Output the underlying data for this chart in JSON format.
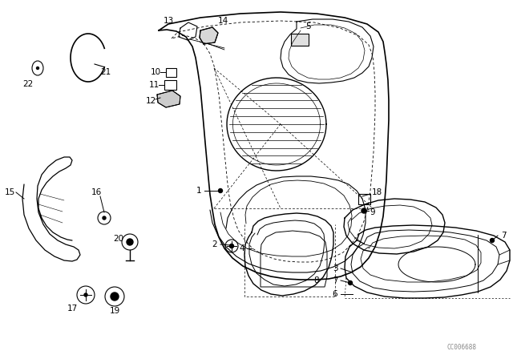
{
  "bg_color": "#ffffff",
  "diagram_color": "#000000",
  "watermark": "CC006688"
}
